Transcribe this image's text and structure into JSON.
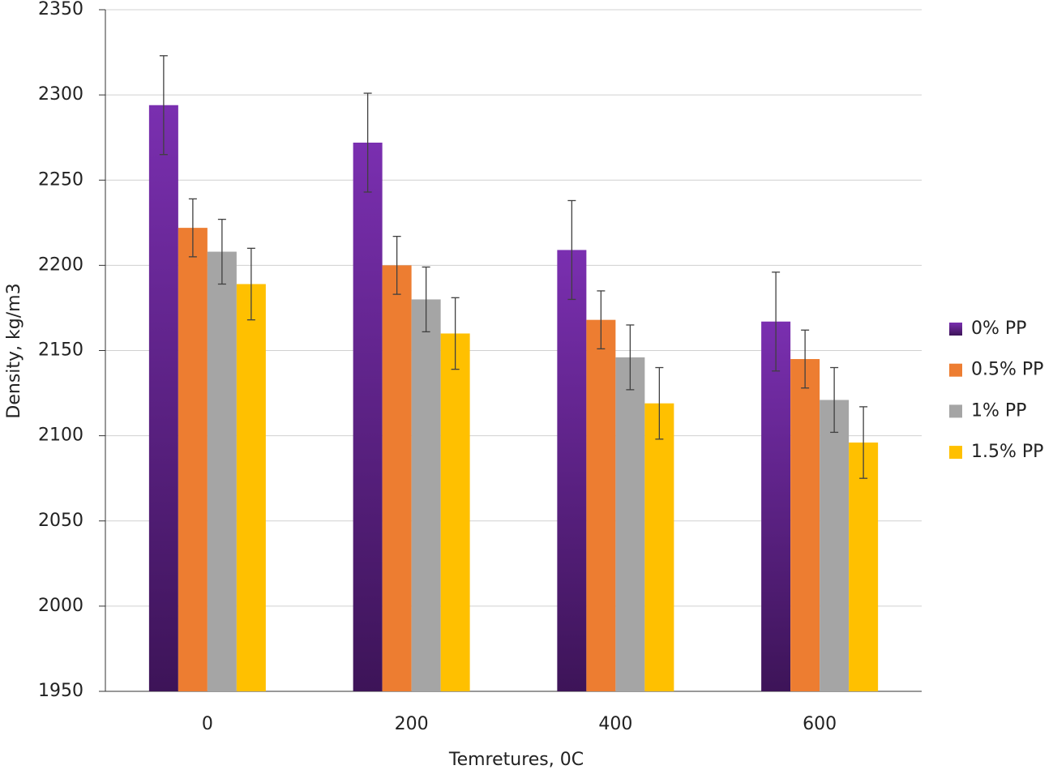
{
  "chart_data": {
    "type": "bar",
    "x_label": "Temretures, 0C",
    "y_label": "Density, kg/m3",
    "categories": [
      "0",
      "200",
      "400",
      "600"
    ],
    "series": [
      {
        "name": "0% PP",
        "color": "#7030a0",
        "values": [
          2294,
          2272,
          2209,
          2167
        ],
        "errors": [
          29,
          29,
          29,
          29
        ]
      },
      {
        "name": "0.5% PP",
        "color": "#ed7d31",
        "values": [
          2222,
          2200,
          2168,
          2145
        ],
        "errors": [
          17,
          17,
          17,
          17
        ]
      },
      {
        "name": "1% PP",
        "color": "#a5a5a5",
        "values": [
          2208,
          2180,
          2146,
          2121
        ],
        "errors": [
          19,
          19,
          19,
          19
        ]
      },
      {
        "name": "1.5% PP",
        "color": "#ffc000",
        "values": [
          2189,
          2160,
          2119,
          2096
        ],
        "errors": [
          21,
          21,
          21,
          21
        ]
      }
    ],
    "ylim": [
      1950,
      2350
    ],
    "yticks": [
      1950,
      2000,
      2050,
      2100,
      2150,
      2200,
      2250,
      2300,
      2350
    ],
    "grid": true,
    "legend": "right"
  }
}
